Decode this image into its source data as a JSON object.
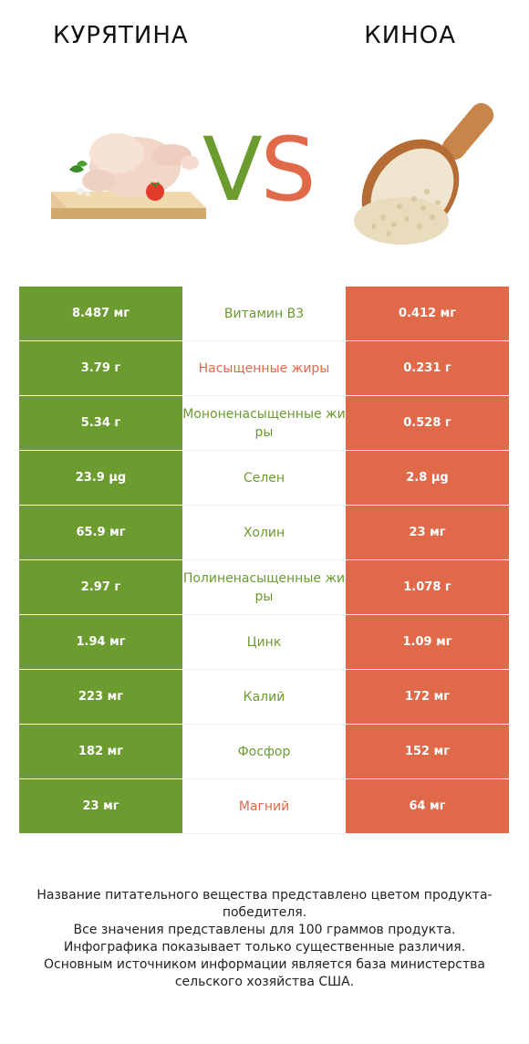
{
  "header": {
    "left_title": "КУРЯТИНА",
    "right_title": "КИНОА",
    "vs_v": "V",
    "vs_s": "S"
  },
  "colors": {
    "winner_left": "#6c9b2f",
    "winner_right": "#e0694a"
  },
  "images": {
    "left": "chicken-on-board-icon",
    "right": "quinoa-scoop-icon"
  },
  "chart_data": {
    "type": "table",
    "columns": [
      "КУРЯТИНА",
      "",
      "КИНОА"
    ],
    "rows": [
      {
        "nutrient": "Витамин B3",
        "left": "8.487 мг",
        "right": "0.412 мг",
        "winner": "left"
      },
      {
        "nutrient": "Насыщенные жиры",
        "left": "3.79 г",
        "right": "0.231 г",
        "winner": "right"
      },
      {
        "nutrient": "Мононенасыщенные жиры",
        "left": "5.34 г",
        "right": "0.528 г",
        "winner": "left"
      },
      {
        "nutrient": "Селен",
        "left": "23.9 µg",
        "right": "2.8 µg",
        "winner": "left"
      },
      {
        "nutrient": "Холин",
        "left": "65.9 мг",
        "right": "23 мг",
        "winner": "left"
      },
      {
        "nutrient": "Полиненасыщенные жиры",
        "left": "2.97 г",
        "right": "1.078 г",
        "winner": "left"
      },
      {
        "nutrient": "Цинк",
        "left": "1.94 мг",
        "right": "1.09 мг",
        "winner": "left"
      },
      {
        "nutrient": "Калий",
        "left": "223 мг",
        "right": "172 мг",
        "winner": "left"
      },
      {
        "nutrient": "Фосфор",
        "left": "182 мг",
        "right": "152 мг",
        "winner": "left"
      },
      {
        "nutrient": "Магний",
        "left": "23 мг",
        "right": "64 мг",
        "winner": "right"
      }
    ]
  },
  "footer": {
    "lines": [
      "Название питательного вещества представлено цветом продукта-победителя.",
      "Все значения представлены для 100 граммов продукта.",
      "Инфографика показывает только существенные различия.",
      "Основным источником информации является база министерства сельского хозяйства США."
    ]
  }
}
